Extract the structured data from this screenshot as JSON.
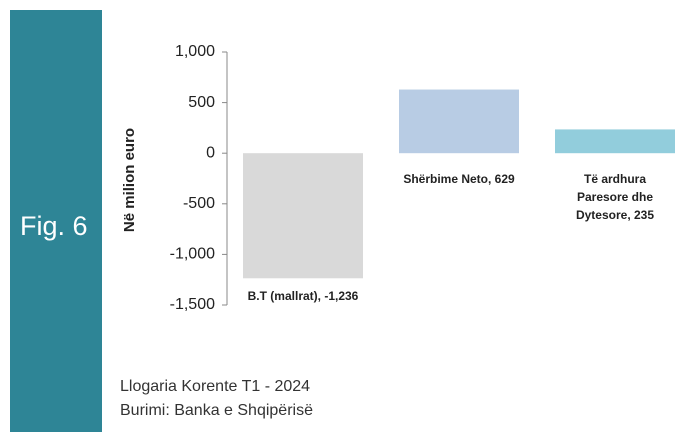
{
  "figure_label": "Fig. 6",
  "chart_data": {
    "type": "bar",
    "ylabel": "Në milion euro",
    "categories": [
      "B.T (mallrat)",
      "Shërbime Neto",
      "Të ardhura Paresore dhe Dytesore"
    ],
    "values": [
      -1236,
      629,
      235
    ],
    "value_labels": [
      "B.T (mallrat), -1,236",
      "Shërbime Neto, 629",
      "Të ardhura Paresore dhe Dytesore, 235"
    ],
    "colors": [
      "#d9d9d9",
      "#b8cce4",
      "#92cddc"
    ],
    "ylim": [
      -1500,
      1000
    ],
    "yticks": [
      {
        "value": 1000,
        "label": "1,000"
      },
      500,
      0,
      -500,
      {
        "value": -1000,
        "label": "-1,000"
      },
      {
        "value": -1500,
        "label": "-1,500"
      }
    ],
    "grid": false
  },
  "footer": [
    "Llogaria Korente T1 - 2024",
    "Burimi: Banka e Shqipërisë"
  ]
}
